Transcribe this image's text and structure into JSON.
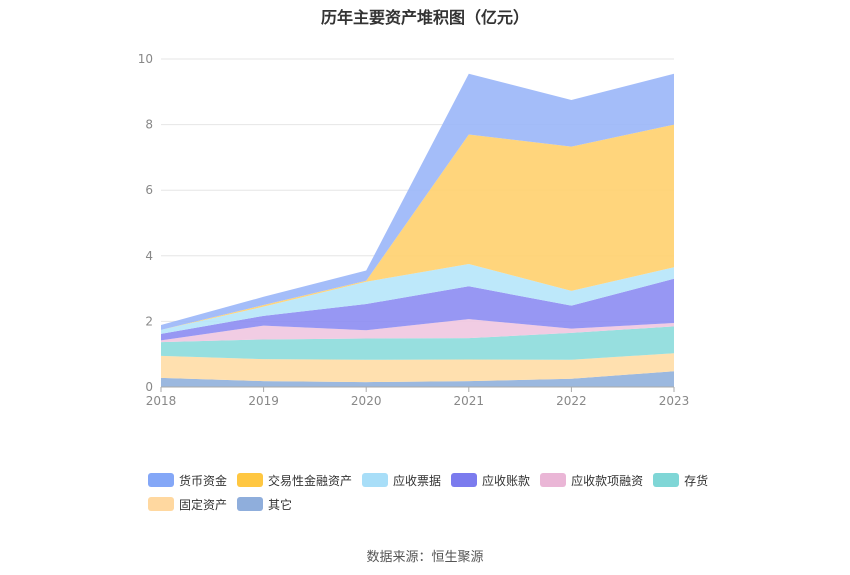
{
  "chart_data": {
    "type": "area",
    "stacked": true,
    "title": "历年主要资产堆积图（亿元）",
    "x": [
      "2018",
      "2019",
      "2020",
      "2021",
      "2022",
      "2023"
    ],
    "ylim": [
      0,
      10
    ],
    "yticks": [
      0,
      2,
      4,
      6,
      8,
      10
    ],
    "grid": true,
    "legend_position": "bottom",
    "series": [
      {
        "name": "其它",
        "color": "#90B0DC",
        "values": [
          0.28,
          0.18,
          0.15,
          0.18,
          0.25,
          0.48
        ]
      },
      {
        "name": "固定资产",
        "color": "#FFDDA6",
        "values": [
          0.67,
          0.67,
          0.68,
          0.66,
          0.58,
          0.55
        ]
      },
      {
        "name": "存货",
        "color": "#8CDBDB",
        "values": [
          0.42,
          0.6,
          0.65,
          0.65,
          0.82,
          0.82
        ]
      },
      {
        "name": "应收款项融资",
        "color": "#F0C6E0",
        "values": [
          0.05,
          0.42,
          0.25,
          0.58,
          0.13,
          0.1
        ]
      },
      {
        "name": "应收账款",
        "color": "#8C8CF2",
        "values": [
          0.2,
          0.3,
          0.8,
          1.0,
          0.7,
          1.35
        ]
      },
      {
        "name": "应收票据",
        "color": "#B6E6FA",
        "values": [
          0.12,
          0.28,
          0.68,
          0.68,
          0.45,
          0.35
        ]
      },
      {
        "name": "交易性金融资产",
        "color": "#FFD06E",
        "values": [
          0.0,
          0.05,
          0.03,
          3.95,
          4.4,
          4.35
        ]
      },
      {
        "name": "货币资金",
        "color": "#9AB6F8",
        "values": [
          0.15,
          0.25,
          0.31,
          1.85,
          1.42,
          1.55
        ]
      }
    ]
  },
  "legend_items": [
    {
      "label": "货币资金",
      "color": "#84A7F7"
    },
    {
      "label": "交易性金融资产",
      "color": "#FFC741"
    },
    {
      "label": "应收票据",
      "color": "#A8DEF8"
    },
    {
      "label": "应收账款",
      "color": "#7B7BEE"
    },
    {
      "label": "应收款项融资",
      "color": "#EAB6D6"
    },
    {
      "label": "存货",
      "color": "#7FD6D6"
    },
    {
      "label": "固定资产",
      "color": "#FFD8A0"
    },
    {
      "label": "其它",
      "color": "#8FAEDC"
    }
  ],
  "source": "数据来源：恒生聚源"
}
